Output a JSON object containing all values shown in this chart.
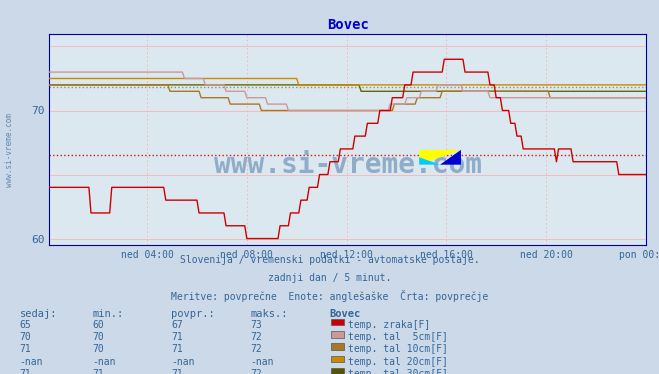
{
  "title": "Bovec",
  "title_color": "#0000cc",
  "bg_color": "#ccd9e8",
  "plot_bg_color": "#dce8f0",
  "ylim": [
    59.5,
    76.0
  ],
  "yticks": [
    60,
    70
  ],
  "xlim": [
    0,
    287
  ],
  "xtick_positions": [
    47,
    95,
    143,
    191,
    239,
    287
  ],
  "xtick_labels": [
    "ned 04:00",
    "ned 08:00",
    "ned 12:00",
    "ned 16:00",
    "ned 20:00",
    "pon 00:00"
  ],
  "subtitle1": "Slovenija / vremenski podatki - avtomatske postaje.",
  "subtitle2": "zadnji dan / 5 minut.",
  "subtitle3": "Meritve: povprečne  Enote: anglešaške  Črta: povprečje",
  "subtitle_color": "#336699",
  "watermark": "www.si-vreme.com",
  "line_colors": [
    "#cc0000",
    "#cc9999",
    "#aa7722",
    "#cc8800",
    "#666600"
  ],
  "line_labels": [
    "temp. zraka[F]",
    "temp. tal  5cm[F]",
    "temp. tal 10cm[F]",
    "temp. tal 20cm[F]",
    "temp. tal 30cm[F]"
  ],
  "legend_colors": [
    "#cc0000",
    "#cc9999",
    "#aa7722",
    "#cc8800",
    "#555500"
  ],
  "table_headers": [
    "sedaj:",
    "min.:",
    "povpr.:",
    "maks.:",
    "Bovec"
  ],
  "table_rows": [
    [
      "65",
      "60",
      "67",
      "73"
    ],
    [
      "70",
      "70",
      "71",
      "72"
    ],
    [
      "71",
      "70",
      "71",
      "72"
    ],
    [
      "-nan",
      "-nan",
      "-nan",
      "-nan"
    ],
    [
      "71",
      "71",
      "71",
      "72"
    ]
  ],
  "hline_dotted_red_y": 66.5,
  "hline_dotted_gray_y": 71.8,
  "avg_line_y": 72.0
}
